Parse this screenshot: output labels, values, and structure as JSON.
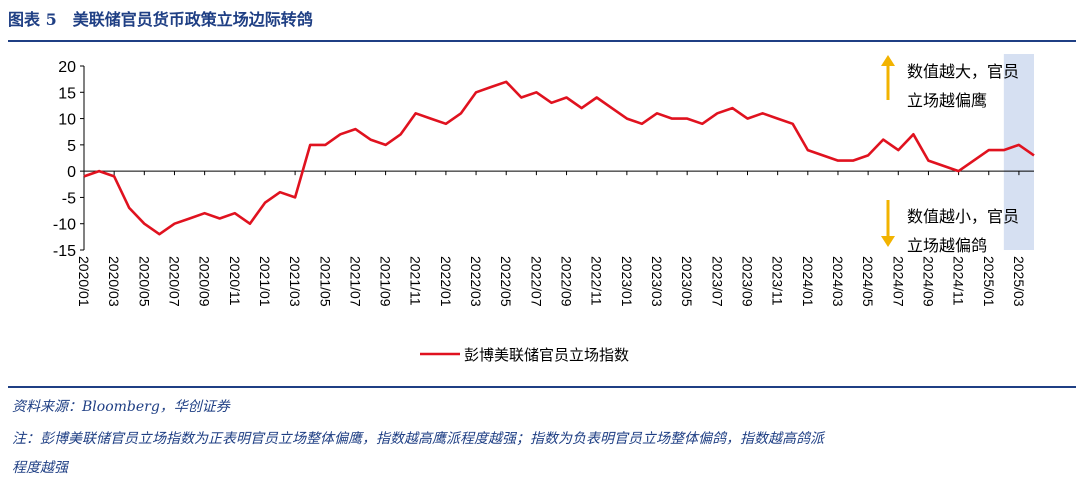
{
  "figure": {
    "title": "图表 5　美联储官员货币政策立场边际转鸽",
    "source": "资料来源：Bloomberg，华创证券",
    "note_line1": "注：彭博美联储官员立场指数为正表明官员立场整体偏鹰，指数越高鹰派程度越强；指数为负表明官员立场整体偏鸽，指数越高鸽派",
    "note_line2": "程度越强"
  },
  "annotations": {
    "hawk_line1": "数值越大，官员",
    "hawk_line2": "立场越偏鹰",
    "dove_line1": "数值越小，官员",
    "dove_line2": "立场越偏鸽"
  },
  "colors": {
    "line": "#e0121f",
    "title": "#1f3f84",
    "arrow": "#f2b300",
    "shade": "#d6e0f2"
  },
  "chart_data": {
    "type": "line",
    "title": "",
    "xlabel": "",
    "ylabel": "",
    "ylim": [
      -15,
      20
    ],
    "yticks": [
      20,
      15,
      10,
      5,
      0,
      -5,
      -10,
      -15
    ],
    "xticks": [
      "2020/01",
      "2020/03",
      "2020/05",
      "2020/07",
      "2020/09",
      "2020/11",
      "2021/01",
      "2021/03",
      "2021/05",
      "2021/07",
      "2021/09",
      "2021/11",
      "2022/01",
      "2022/03",
      "2022/05",
      "2022/07",
      "2022/09",
      "2022/11",
      "2023/01",
      "2023/03",
      "2023/05",
      "2023/07",
      "2023/09",
      "2023/11",
      "2024/01",
      "2024/03",
      "2024/05",
      "2024/07",
      "2024/09",
      "2024/11",
      "2025/01",
      "2025/03"
    ],
    "shaded_range": [
      "2025/02",
      "2025/04"
    ],
    "legend_position": "bottom",
    "series": [
      {
        "name": "彭博美联储官员立场指数",
        "x": [
          "2020/01",
          "2020/02",
          "2020/03",
          "2020/04",
          "2020/05",
          "2020/06",
          "2020/07",
          "2020/08",
          "2020/09",
          "2020/10",
          "2020/11",
          "2020/12",
          "2021/01",
          "2021/02",
          "2021/03",
          "2021/04",
          "2021/05",
          "2021/06",
          "2021/07",
          "2021/08",
          "2021/09",
          "2021/10",
          "2021/11",
          "2021/12",
          "2022/01",
          "2022/02",
          "2022/03",
          "2022/04",
          "2022/05",
          "2022/06",
          "2022/07",
          "2022/08",
          "2022/09",
          "2022/10",
          "2022/11",
          "2022/12",
          "2023/01",
          "2023/02",
          "2023/03",
          "2023/04",
          "2023/05",
          "2023/06",
          "2023/07",
          "2023/08",
          "2023/09",
          "2023/10",
          "2023/11",
          "2023/12",
          "2024/01",
          "2024/02",
          "2024/03",
          "2024/04",
          "2024/05",
          "2024/06",
          "2024/07",
          "2024/08",
          "2024/09",
          "2024/10",
          "2024/11",
          "2024/12",
          "2025/01",
          "2025/02",
          "2025/03",
          "2025/04"
        ],
        "values": [
          -1,
          0,
          -1,
          -7,
          -10,
          -12,
          -10,
          -9,
          -8,
          -9,
          -8,
          -10,
          -6,
          -4,
          -5,
          5,
          5,
          7,
          8,
          6,
          5,
          7,
          11,
          10,
          9,
          11,
          15,
          16,
          17,
          14,
          15,
          13,
          14,
          12,
          14,
          12,
          10,
          9,
          11,
          10,
          10,
          9,
          11,
          12,
          10,
          11,
          10,
          9,
          4,
          3,
          2,
          2,
          3,
          6,
          4,
          7,
          2,
          1,
          0,
          2,
          4,
          4,
          5,
          3
        ]
      }
    ]
  }
}
